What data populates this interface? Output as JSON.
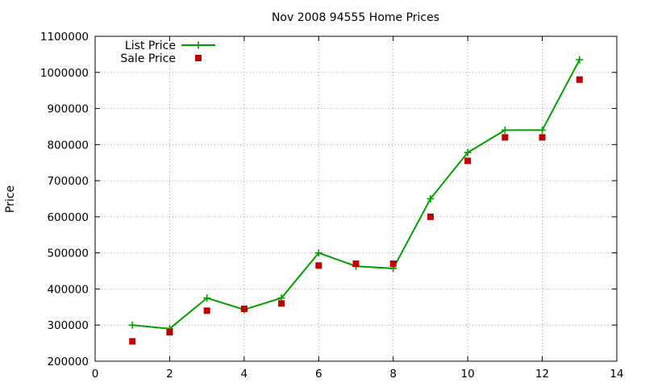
{
  "chart_data": {
    "type": "line",
    "title": "Nov 2008 94555 Home Prices",
    "xlabel": "",
    "ylabel": "Price",
    "xlim": [
      0,
      14
    ],
    "ylim": [
      200000,
      1100000
    ],
    "xticks": [
      0,
      2,
      4,
      6,
      8,
      10,
      12,
      14
    ],
    "yticks": [
      200000,
      300000,
      400000,
      500000,
      600000,
      700000,
      800000,
      900000,
      1000000,
      1100000
    ],
    "grid": true,
    "legend_position": "top-left",
    "series": [
      {
        "name": "List Price",
        "style": "line-points",
        "marker": "plus",
        "color": "#00a000",
        "x": [
          1,
          2,
          3,
          4,
          5,
          6,
          7,
          8,
          9,
          10,
          11,
          12,
          13
        ],
        "y": [
          300000,
          290000,
          375000,
          343000,
          375000,
          500000,
          463000,
          457000,
          650000,
          778000,
          840000,
          840000,
          1035000
        ]
      },
      {
        "name": "Sale Price",
        "style": "points",
        "marker": "square",
        "color": "#c00000",
        "x": [
          1,
          2,
          3,
          4,
          5,
          6,
          7,
          8,
          9,
          10,
          11,
          12,
          13
        ],
        "y": [
          255000,
          280000,
          340000,
          345000,
          360000,
          465000,
          470000,
          470000,
          600000,
          755000,
          820000,
          820000,
          980000
        ]
      }
    ]
  }
}
